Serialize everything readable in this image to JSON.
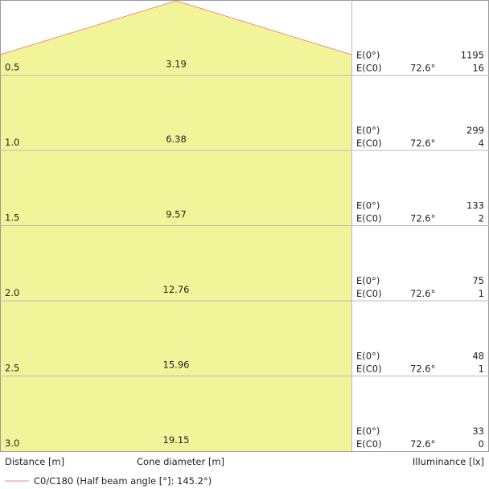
{
  "rows": [
    {
      "distance": "0.5",
      "diameter": "3.19",
      "e0_label": "E(0°)",
      "e0": "1195",
      "ec0_label": "E(C0)",
      "angle": "72.6°",
      "ec0": "16"
    },
    {
      "distance": "1.0",
      "diameter": "6.38",
      "e0_label": "E(0°)",
      "e0": "299",
      "ec0_label": "E(C0)",
      "angle": "72.6°",
      "ec0": "4"
    },
    {
      "distance": "1.5",
      "diameter": "9.57",
      "e0_label": "E(0°)",
      "e0": "133",
      "ec0_label": "E(C0)",
      "angle": "72.6°",
      "ec0": "2"
    },
    {
      "distance": "2.0",
      "diameter": "12.76",
      "e0_label": "E(0°)",
      "e0": "75",
      "ec0_label": "E(C0)",
      "angle": "72.6°",
      "ec0": "1"
    },
    {
      "distance": "2.5",
      "diameter": "15.96",
      "e0_label": "E(0°)",
      "e0": "48",
      "ec0_label": "E(C0)",
      "angle": "72.6°",
      "ec0": "1"
    },
    {
      "distance": "3.0",
      "diameter": "19.15",
      "e0_label": "E(0°)",
      "e0": "33",
      "ec0_label": "E(C0)",
      "angle": "72.6°",
      "ec0": "0"
    }
  ],
  "axis_labels": {
    "distance": "Distance [m]",
    "diameter": "Cone diameter [m]",
    "illuminance": "Illuminance [lx]"
  },
  "legend": {
    "label": "C0/C180 (Half beam angle [°]: 145.2°)"
  }
}
